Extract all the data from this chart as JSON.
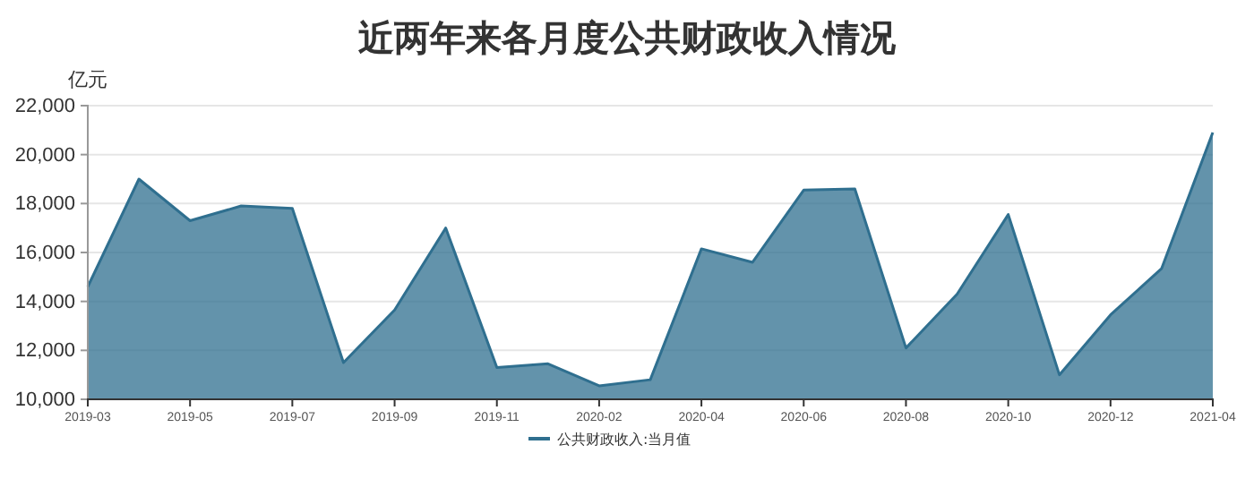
{
  "chart_data": {
    "type": "area",
    "title": "近两年来各月度公共财政收入情况",
    "ylabel": "亿元",
    "categories": [
      "2019-03",
      null,
      "2019-05",
      null,
      "2019-07",
      null,
      "2019-09",
      null,
      "2019-11",
      null,
      "2020-02",
      null,
      "2020-04",
      null,
      "2020-06",
      null,
      "2020-08",
      null,
      "2020-10",
      null,
      "2020-12",
      null,
      "2021-04"
    ],
    "series": [
      {
        "name": "公共财政收入:当月值",
        "color": "#2f6f8f",
        "values": [
          14600,
          19000,
          17300,
          17900,
          17800,
          11500,
          13650,
          17000,
          11300,
          11450,
          10550,
          10800,
          16150,
          15600,
          18550,
          18600,
          12100,
          14300,
          17550,
          11000,
          13450,
          15350,
          20900
        ]
      }
    ],
    "ylim": [
      10000,
      22000
    ],
    "yticks": [
      {
        "value": 10000,
        "label": "10,000"
      },
      {
        "value": 12000,
        "label": "12,000"
      },
      {
        "value": 14000,
        "label": "14,000"
      },
      {
        "value": 16000,
        "label": "16,000"
      },
      {
        "value": 18000,
        "label": "18,000"
      },
      {
        "value": 20000,
        "label": "20,000"
      },
      {
        "value": 22000,
        "label": "22,000"
      }
    ],
    "grid": "y",
    "legend": "bottom"
  }
}
